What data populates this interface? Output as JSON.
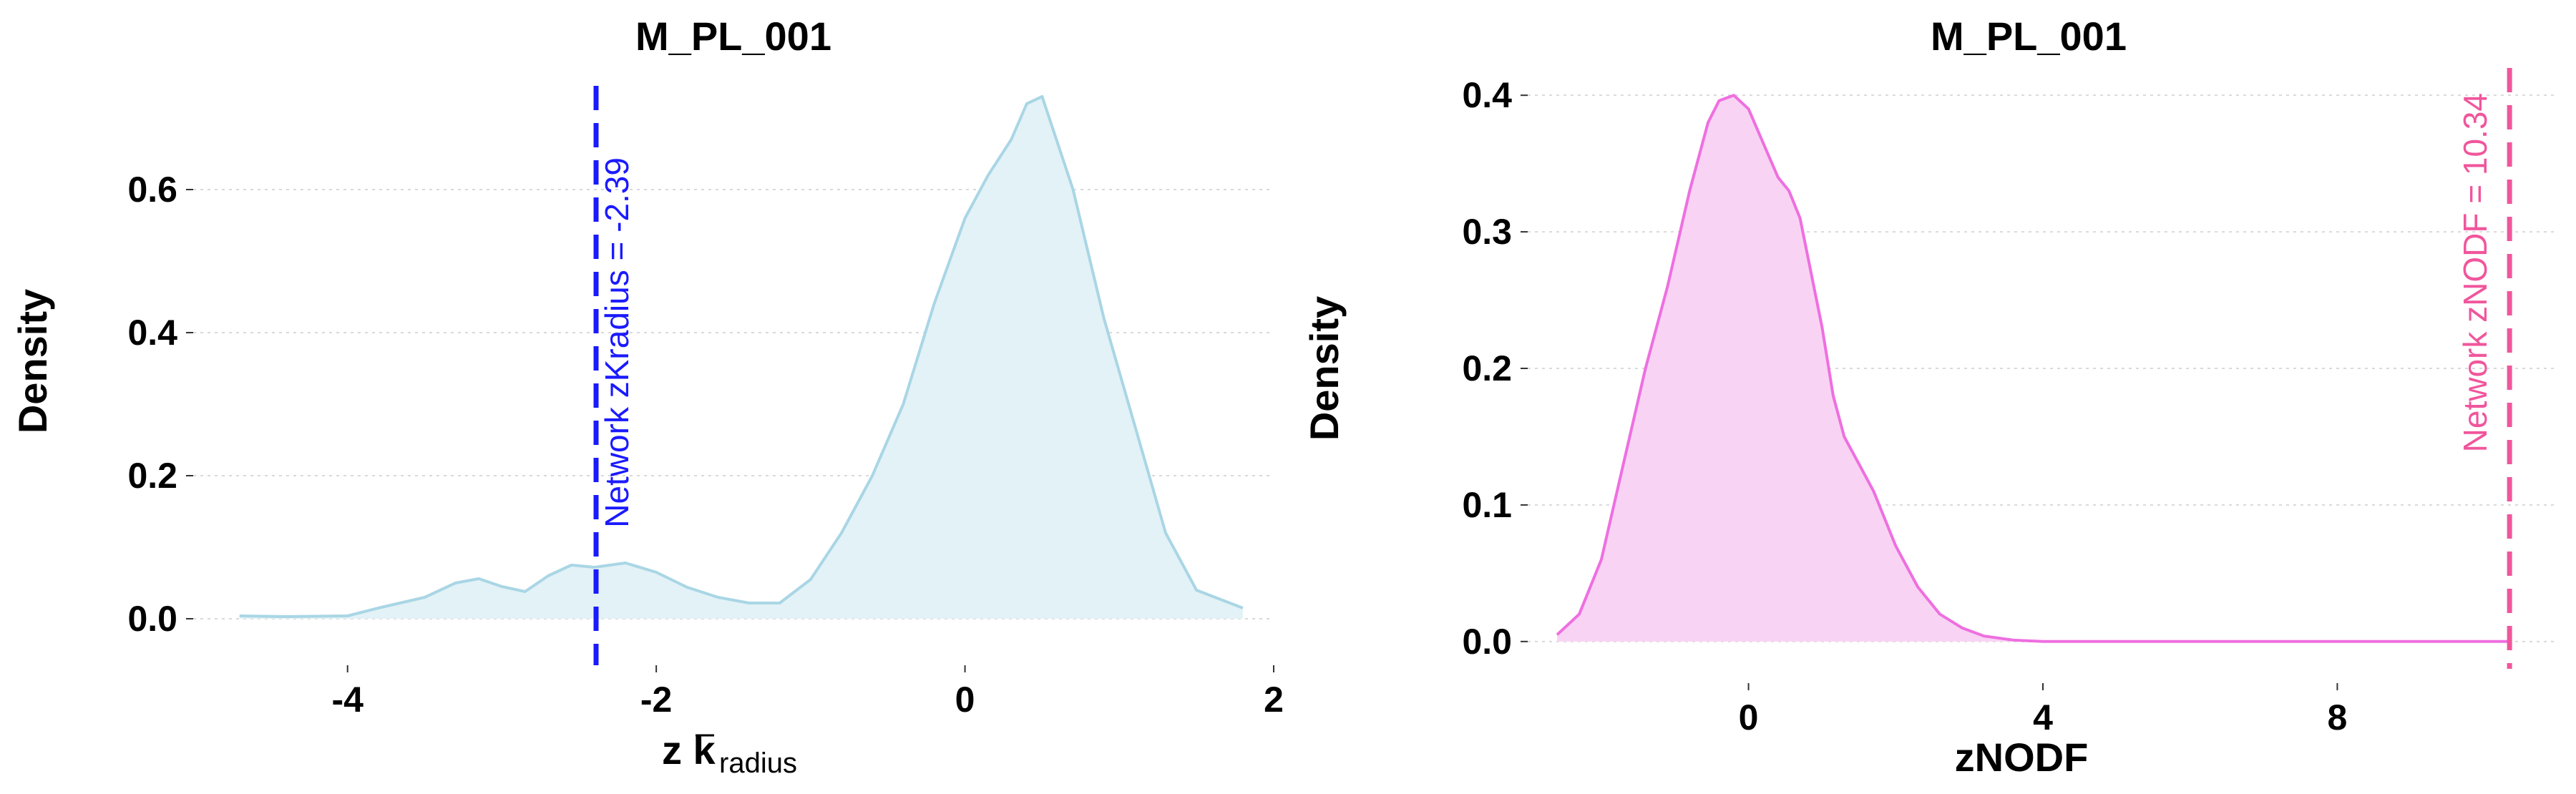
{
  "chart_data": [
    {
      "type": "area",
      "title": "M_PL_001",
      "ylabel": "Density",
      "xlabel": "z k",
      "xlabel_sub": "radius",
      "xlim": [
        -5.0,
        2.0
      ],
      "ylim": [
        -0.03,
        0.75
      ],
      "xticks": [
        -4,
        -2,
        0,
        2
      ],
      "yticks": [
        0.0,
        0.2,
        0.4,
        0.6
      ],
      "grid": true,
      "fill_color": "#e3f2f7",
      "line_color": "#a9d6e5",
      "x": [
        -4.7,
        -4.4,
        -4.0,
        -3.8,
        -3.5,
        -3.3,
        -3.15,
        -3.0,
        -2.85,
        -2.7,
        -2.55,
        -2.4,
        -2.2,
        -2.0,
        -1.8,
        -1.6,
        -1.4,
        -1.2,
        -1.0,
        -0.8,
        -0.6,
        -0.4,
        -0.2,
        0.0,
        0.15,
        0.3,
        0.4,
        0.5,
        0.7,
        0.9,
        1.1,
        1.3,
        1.5,
        1.8
      ],
      "values": [
        0.004,
        0.003,
        0.004,
        0.015,
        0.03,
        0.05,
        0.056,
        0.045,
        0.038,
        0.06,
        0.075,
        0.072,
        0.078,
        0.065,
        0.044,
        0.03,
        0.022,
        0.022,
        0.055,
        0.12,
        0.2,
        0.3,
        0.44,
        0.56,
        0.62,
        0.67,
        0.72,
        0.73,
        0.6,
        0.42,
        0.27,
        0.12,
        0.04,
        0.015
      ],
      "reference_line": {
        "x": -2.39,
        "label": "Network zKradius = -2.39",
        "color": "#1a1aff"
      }
    },
    {
      "type": "area",
      "title": "M_PL_001",
      "ylabel": "Density",
      "xlabel": "zNODF",
      "xlim": [
        -3.0,
        11.0
      ],
      "ylim": [
        -0.02,
        0.42
      ],
      "xticks": [
        0,
        4,
        8
      ],
      "yticks": [
        0.0,
        0.1,
        0.2,
        0.3,
        0.4
      ],
      "grid": true,
      "fill_color": "#f9d3f4",
      "line_color": "#ee6fe0",
      "x": [
        -2.6,
        -2.3,
        -2.0,
        -1.7,
        -1.4,
        -1.1,
        -0.8,
        -0.55,
        -0.4,
        -0.2,
        0.0,
        0.2,
        0.4,
        0.55,
        0.7,
        0.85,
        1.0,
        1.15,
        1.3,
        1.5,
        1.7,
        2.0,
        2.3,
        2.6,
        2.9,
        3.2,
        3.6,
        4.0,
        10.34
      ],
      "values": [
        0.005,
        0.02,
        0.06,
        0.13,
        0.2,
        0.26,
        0.33,
        0.38,
        0.396,
        0.4,
        0.39,
        0.365,
        0.34,
        0.33,
        0.31,
        0.27,
        0.23,
        0.18,
        0.15,
        0.13,
        0.11,
        0.07,
        0.04,
        0.02,
        0.01,
        0.004,
        0.001,
        0.0,
        0.0
      ],
      "reference_line": {
        "x": 10.34,
        "label": "Network zNODF = 10.34",
        "color": "#f0569c"
      }
    }
  ]
}
